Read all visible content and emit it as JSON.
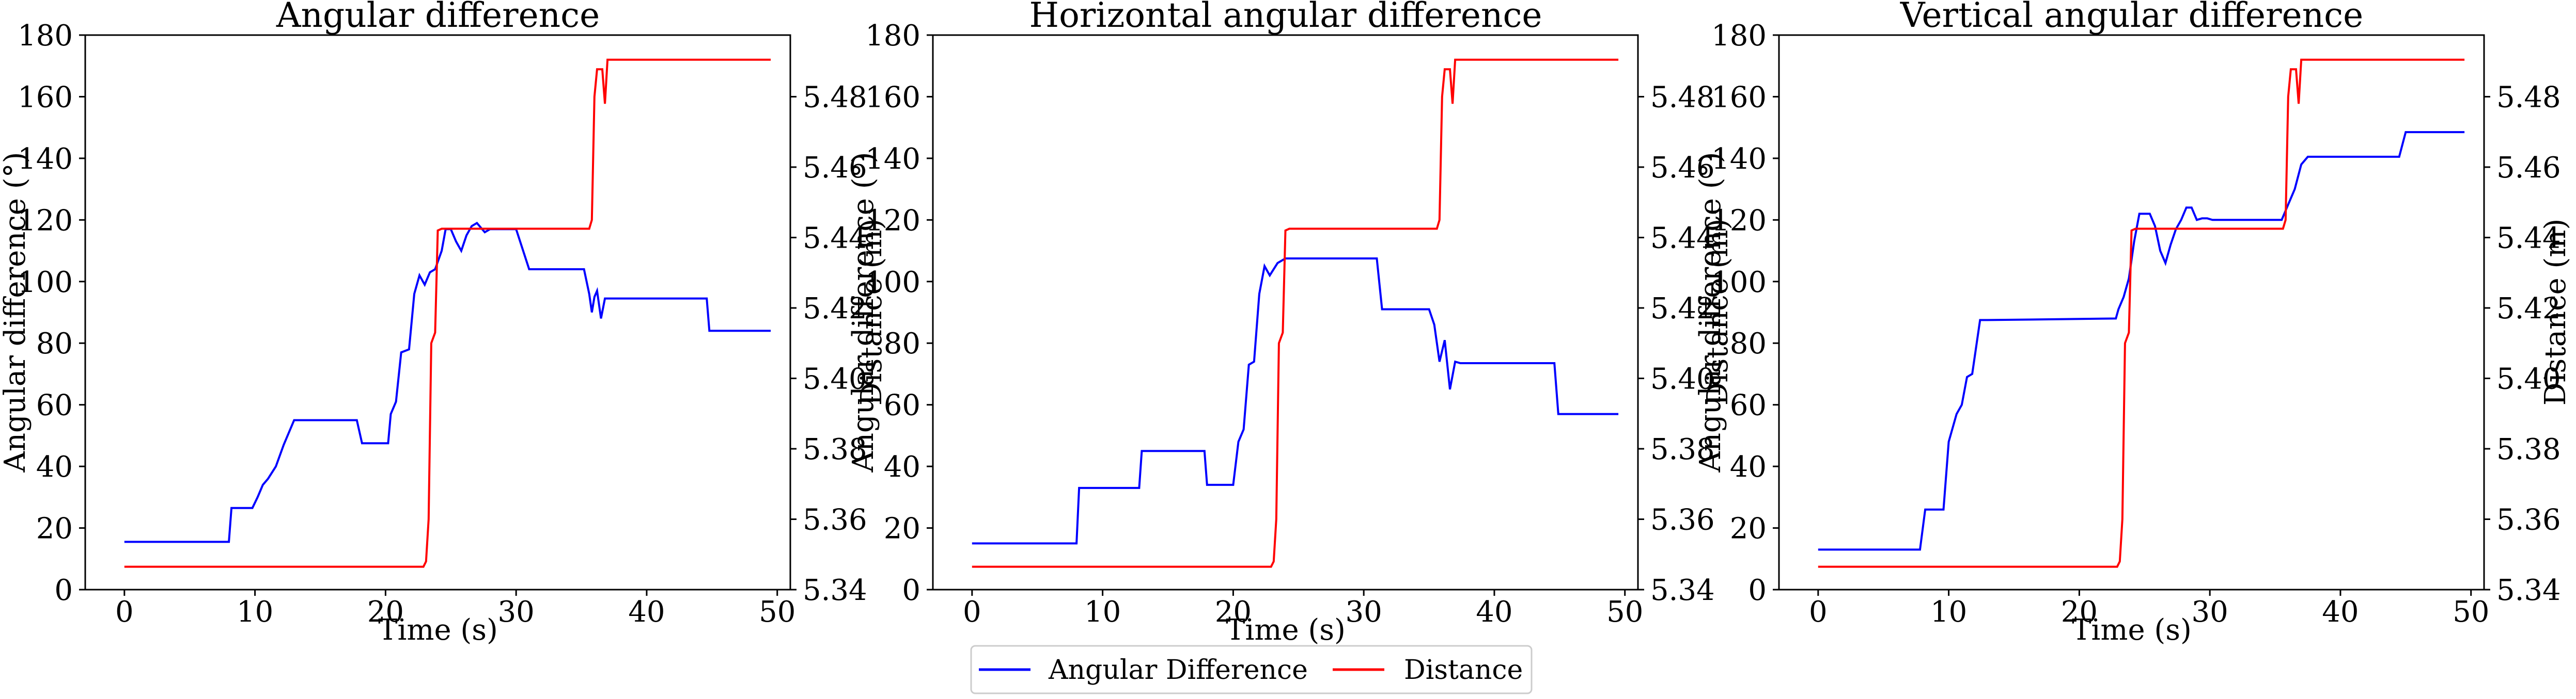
{
  "legend": {
    "position": "bottom-center",
    "entries": [
      {
        "label": "Angular Difference",
        "color": "#0000ff"
      },
      {
        "label": "Distance",
        "color": "#ff0000"
      }
    ]
  },
  "chart_data": [
    {
      "type": "line",
      "title": "Angular difference",
      "xlabel": "Time (s)",
      "ylabel": "Angular difference (°)",
      "y2label": "Distance (m)",
      "xlim": [
        -3,
        51
      ],
      "ylim": [
        0,
        180
      ],
      "y2lim": [
        5.34,
        5.4975
      ],
      "xticks": [
        "0",
        "10",
        "20",
        "30",
        "40",
        "50"
      ],
      "yticks": [
        "0",
        "20",
        "40",
        "60",
        "80",
        "100",
        "120",
        "140",
        "160",
        "180"
      ],
      "y2ticks": [
        "5.34",
        "5.36",
        "5.38",
        "5.40",
        "5.42",
        "5.44",
        "5.46",
        "5.48"
      ],
      "grid": false,
      "series": [
        {
          "name": "Angular Difference",
          "axis": "left",
          "color": "#0000ff",
          "x": [
            0,
            8.0,
            8.2,
            9.8,
            10.2,
            10.6,
            11.0,
            11.6,
            12.2,
            12.6,
            13.0,
            13.4,
            17.8,
            18.2,
            20.2,
            20.4,
            20.8,
            21.2,
            21.8,
            22.2,
            22.6,
            23.0,
            23.4,
            23.8,
            24.3,
            24.6,
            25.0,
            25.4,
            25.8,
            26.2,
            26.6,
            27.0,
            27.6,
            28.0,
            28.4,
            28.8,
            29.4,
            30.0,
            31.0,
            31.2,
            35.2,
            35.6,
            35.8,
            36.0,
            36.2,
            36.5,
            36.8,
            37.2,
            44.6,
            44.8,
            49.5
          ],
          "y": [
            15.5,
            15.5,
            26.5,
            26.5,
            30,
            34,
            36,
            40,
            47,
            51,
            55,
            55,
            55,
            47.5,
            47.5,
            57,
            61,
            77,
            78,
            96,
            102,
            99,
            103,
            104,
            110,
            117,
            117,
            113,
            110,
            115,
            118,
            119,
            116,
            117,
            117,
            117,
            117,
            117,
            104,
            104,
            104,
            96,
            90,
            95,
            97,
            88,
            94.5,
            94.5,
            94.5,
            84,
            84
          ]
        },
        {
          "name": "Distance",
          "axis": "right",
          "color": "#ff0000",
          "x": [
            0,
            22.9,
            23.1,
            23.3,
            23.5,
            23.8,
            24.0,
            24.3,
            35.6,
            35.8,
            36.0,
            36.2,
            36.6,
            36.8,
            37.0,
            37.2,
            49.5
          ],
          "y": [
            5.3465,
            5.3465,
            5.348,
            5.36,
            5.41,
            5.413,
            5.442,
            5.4425,
            5.4425,
            5.445,
            5.48,
            5.4878,
            5.4878,
            5.478,
            5.4905,
            5.4905,
            5.4905
          ]
        }
      ]
    },
    {
      "type": "line",
      "title": "Horizontal angular difference",
      "xlabel": "Time (s)",
      "ylabel": "Angular difference (°)",
      "y2label": "Distance (m)",
      "xlim": [
        -3,
        51
      ],
      "ylim": [
        0,
        180
      ],
      "y2lim": [
        5.34,
        5.4975
      ],
      "xticks": [
        "0",
        "10",
        "20",
        "30",
        "40",
        "50"
      ],
      "yticks": [
        "0",
        "20",
        "40",
        "60",
        "80",
        "100",
        "120",
        "140",
        "160",
        "180"
      ],
      "y2ticks": [
        "5.34",
        "5.36",
        "5.38",
        "5.40",
        "5.42",
        "5.44",
        "5.46",
        "5.48"
      ],
      "grid": false,
      "series": [
        {
          "name": "Angular Difference",
          "axis": "left",
          "color": "#0000ff",
          "x": [
            0,
            8.0,
            8.2,
            12.8,
            13.0,
            17.8,
            18.0,
            20.0,
            20.4,
            20.8,
            21.2,
            21.6,
            22.0,
            22.4,
            22.8,
            23.4,
            24.0,
            24.4,
            31.0,
            31.4,
            35.0,
            35.4,
            35.8,
            36.2,
            36.6,
            37.0,
            37.4,
            44.6,
            44.9,
            49.5
          ],
          "y": [
            15,
            15,
            33,
            33,
            45,
            45,
            34,
            34,
            48,
            52,
            73,
            74,
            96,
            105,
            102,
            106,
            107.5,
            107.5,
            107.5,
            91,
            91,
            86,
            74,
            81,
            65,
            74,
            73.5,
            73.5,
            57,
            57
          ]
        },
        {
          "name": "Distance",
          "axis": "right",
          "color": "#ff0000",
          "x": [
            0,
            22.9,
            23.1,
            23.3,
            23.5,
            23.8,
            24.0,
            24.3,
            35.6,
            35.8,
            36.0,
            36.2,
            36.6,
            36.8,
            37.0,
            37.2,
            49.5
          ],
          "y": [
            5.3465,
            5.3465,
            5.348,
            5.36,
            5.41,
            5.413,
            5.442,
            5.4425,
            5.4425,
            5.445,
            5.48,
            5.4878,
            5.4878,
            5.478,
            5.4905,
            5.4905,
            5.4905
          ]
        }
      ]
    },
    {
      "type": "line",
      "title": "Vertical angular difference",
      "xlabel": "Time (s)",
      "ylabel": "Angular difference (°)",
      "y2label": "Distance (m)",
      "xlim": [
        -3,
        51
      ],
      "ylim": [
        0,
        180
      ],
      "y2lim": [
        5.34,
        5.4975
      ],
      "xticks": [
        "0",
        "10",
        "20",
        "30",
        "40",
        "50"
      ],
      "yticks": [
        "0",
        "20",
        "40",
        "60",
        "80",
        "100",
        "120",
        "140",
        "160",
        "180"
      ],
      "y2ticks": [
        "5.34",
        "5.36",
        "5.38",
        "5.40",
        "5.42",
        "5.44",
        "5.46",
        "5.48"
      ],
      "grid": false,
      "series": [
        {
          "name": "Angular Difference",
          "axis": "left",
          "color": "#0000ff",
          "x": [
            0,
            7.8,
            8.2,
            9.6,
            10.0,
            10.6,
            11.0,
            11.4,
            11.8,
            12.4,
            12.8,
            13.0,
            22.8,
            23.0,
            23.4,
            23.8,
            24.2,
            24.6,
            25.0,
            25.4,
            25.8,
            26.2,
            26.6,
            27.0,
            27.4,
            27.8,
            28.2,
            28.6,
            29.0,
            29.4,
            29.8,
            30.2,
            31.5,
            35.5,
            36.0,
            36.5,
            37.0,
            37.5,
            44.5,
            45.0,
            49.5
          ],
          "y": [
            13,
            13,
            26,
            26,
            48,
            57,
            60,
            69,
            70,
            87.5,
            87.5,
            87.5,
            88,
            91,
            95,
            101,
            113,
            122,
            122,
            122,
            118,
            110,
            106,
            112,
            117,
            120,
            124,
            124,
            120,
            120.5,
            120.5,
            120,
            120,
            120,
            125,
            130,
            138,
            140.5,
            140.5,
            148.5,
            148.5
          ]
        },
        {
          "name": "Distance",
          "axis": "right",
          "color": "#ff0000",
          "x": [
            0,
            22.9,
            23.1,
            23.3,
            23.5,
            23.8,
            24.0,
            24.3,
            35.6,
            35.8,
            36.0,
            36.2,
            36.6,
            36.8,
            37.0,
            37.2,
            49.5
          ],
          "y": [
            5.3465,
            5.3465,
            5.348,
            5.36,
            5.41,
            5.413,
            5.442,
            5.4425,
            5.4425,
            5.445,
            5.48,
            5.4878,
            5.4878,
            5.478,
            5.4905,
            5.4905,
            5.4905
          ]
        }
      ]
    }
  ]
}
